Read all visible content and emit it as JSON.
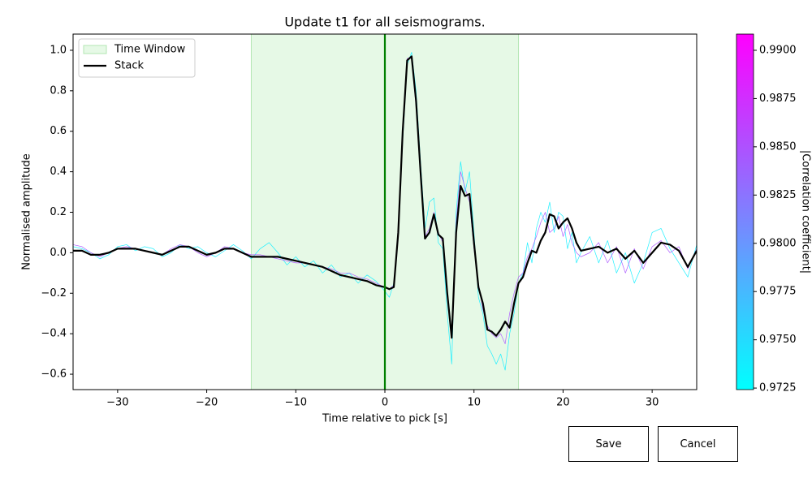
{
  "chart_data": {
    "type": "line",
    "title": "Update t1 for all seismograms.",
    "xlabel": "Time relative to pick [s]",
    "ylabel": "Normalised amplitude",
    "xlim": [
      -35,
      35
    ],
    "ylim": [
      -0.676,
      1.08
    ],
    "xticks": [
      {
        "value": -30,
        "label": "−30"
      },
      {
        "value": -20,
        "label": "−20"
      },
      {
        "value": -10,
        "label": "−10"
      },
      0,
      10,
      20,
      30
    ],
    "yticks": [
      {
        "value": -0.6,
        "label": "−0.6"
      },
      {
        "value": -0.4,
        "label": "−0.4"
      },
      {
        "value": -0.2,
        "label": "−0.2"
      },
      {
        "value": 0,
        "label": "0.0"
      },
      0.2,
      0.4,
      0.6,
      0.8,
      {
        "value": 1,
        "label": "1.0"
      }
    ],
    "window_label": "Time Window",
    "window": [
      -15,
      15
    ],
    "window_color": "#e6f9e6",
    "pick": 0,
    "pick_color": "#008000",
    "legend": "upper left",
    "x": [
      -35,
      -34,
      -33,
      -32,
      -31,
      -30,
      -29,
      -28,
      -27,
      -26,
      -25,
      -24,
      -23,
      -22,
      -21,
      -20,
      -19,
      -18,
      -17,
      -16,
      -15,
      -14,
      -13,
      -12,
      -11,
      -10,
      -9,
      -8,
      -7,
      -6,
      -5,
      -4,
      -3,
      -2,
      -1,
      0,
      0.5,
      1,
      1.5,
      2,
      2.5,
      3,
      3.5,
      4,
      4.5,
      5,
      5.5,
      6,
      6.5,
      7,
      7.5,
      8,
      8.5,
      9,
      9.5,
      10,
      10.5,
      11,
      11.5,
      12,
      12.5,
      13,
      13.5,
      14,
      14.5,
      15,
      15.5,
      16,
      16.5,
      17,
      17.5,
      18,
      18.5,
      19,
      19.5,
      20,
      20.5,
      21,
      21.5,
      22,
      23,
      24,
      25,
      26,
      27,
      28,
      29,
      30,
      31,
      32,
      33,
      34,
      35
    ],
    "series": [
      {
        "color": "#1ff0ff",
        "values": [
          0.03,
          0.02,
          0.0,
          -0.03,
          -0.01,
          0.03,
          0.04,
          0.01,
          0.03,
          0.02,
          -0.02,
          0.0,
          0.04,
          0.02,
          0.03,
          0.0,
          -0.02,
          0.01,
          0.04,
          0.01,
          -0.03,
          0.02,
          0.05,
          0.0,
          -0.06,
          -0.02,
          -0.07,
          -0.04,
          -0.1,
          -0.06,
          -0.12,
          -0.1,
          -0.15,
          -0.11,
          -0.14,
          -0.19,
          -0.22,
          -0.15,
          0.08,
          0.55,
          0.93,
          0.99,
          0.8,
          0.45,
          0.12,
          0.25,
          0.27,
          0.05,
          0.02,
          -0.3,
          -0.55,
          0.2,
          0.45,
          0.3,
          0.4,
          0.1,
          -0.22,
          -0.3,
          -0.46,
          -0.5,
          -0.55,
          -0.5,
          -0.58,
          -0.4,
          -0.3,
          -0.15,
          -0.1,
          0.05,
          -0.05,
          0.12,
          0.2,
          0.15,
          0.25,
          0.1,
          0.2,
          0.18,
          0.02,
          0.1,
          -0.05,
          0.0,
          0.08,
          -0.05,
          0.06,
          -0.1,
          0.0,
          -0.15,
          -0.05,
          0.1,
          0.12,
          0.02,
          -0.05,
          -0.12,
          0.04
        ]
      },
      {
        "color": "#b060ff",
        "values": [
          0.04,
          0.03,
          0.0,
          -0.02,
          0.0,
          0.02,
          0.03,
          0.02,
          0.01,
          0.0,
          -0.01,
          0.02,
          0.04,
          0.03,
          0.0,
          -0.02,
          0.0,
          0.03,
          0.02,
          0.0,
          -0.01,
          -0.01,
          -0.02,
          -0.03,
          -0.04,
          -0.05,
          -0.05,
          -0.06,
          -0.07,
          -0.08,
          -0.1,
          -0.1,
          -0.12,
          -0.13,
          -0.15,
          -0.17,
          -0.18,
          -0.16,
          0.12,
          0.62,
          0.96,
          0.96,
          0.72,
          0.38,
          0.08,
          0.12,
          0.2,
          0.1,
          0.05,
          -0.18,
          -0.4,
          0.15,
          0.4,
          0.32,
          0.25,
          0.02,
          -0.15,
          -0.28,
          -0.36,
          -0.4,
          -0.42,
          -0.4,
          -0.45,
          -0.3,
          -0.2,
          -0.12,
          -0.1,
          -0.02,
          0.02,
          0.08,
          0.15,
          0.2,
          0.1,
          0.12,
          0.18,
          0.08,
          0.14,
          0.05,
          0.0,
          -0.02,
          0.0,
          0.05,
          -0.05,
          0.03,
          -0.1,
          0.02,
          -0.08,
          0.03,
          0.06,
          0.0,
          0.03,
          -0.08,
          0.02
        ]
      },
      {
        "name": "Stack",
        "color": "#000000",
        "values": [
          0.01,
          0.01,
          -0.01,
          -0.01,
          0.0,
          0.02,
          0.02,
          0.02,
          0.01,
          0.0,
          -0.01,
          0.01,
          0.03,
          0.03,
          0.01,
          -0.01,
          0.0,
          0.02,
          0.02,
          0.0,
          -0.02,
          -0.02,
          -0.02,
          -0.02,
          -0.03,
          -0.04,
          -0.05,
          -0.06,
          -0.07,
          -0.09,
          -0.11,
          -0.12,
          -0.13,
          -0.14,
          -0.16,
          -0.17,
          -0.18,
          -0.17,
          0.1,
          0.6,
          0.95,
          0.97,
          0.75,
          0.4,
          0.07,
          0.1,
          0.19,
          0.09,
          0.07,
          -0.2,
          -0.42,
          0.1,
          0.33,
          0.28,
          0.29,
          0.05,
          -0.17,
          -0.25,
          -0.38,
          -0.39,
          -0.41,
          -0.38,
          -0.34,
          -0.37,
          -0.25,
          -0.15,
          -0.12,
          -0.05,
          0.01,
          0.0,
          0.06,
          0.1,
          0.19,
          0.18,
          0.12,
          0.15,
          0.17,
          0.12,
          0.05,
          0.01,
          0.02,
          0.03,
          0.0,
          0.02,
          -0.03,
          0.01,
          -0.05,
          0.0,
          0.05,
          0.04,
          0.01,
          -0.07,
          0.01
        ]
      }
    ],
    "colorbar": {
      "label": "|Correlation coefficient|",
      "lim": [
        0.97242,
        0.99084
      ],
      "colors": [
        "#00ffff",
        "#ff00ff"
      ],
      "ticks": [
        0.9725,
        {
          "value": 0.975,
          "label": "0.9750"
        },
        0.9775,
        {
          "value": 0.98,
          "label": "0.9800"
        },
        0.9825,
        {
          "value": 0.985,
          "label": "0.9850"
        },
        0.9875,
        {
          "value": 0.99,
          "label": "0.9900"
        }
      ]
    }
  },
  "buttons": [
    "Save",
    "Cancel"
  ]
}
